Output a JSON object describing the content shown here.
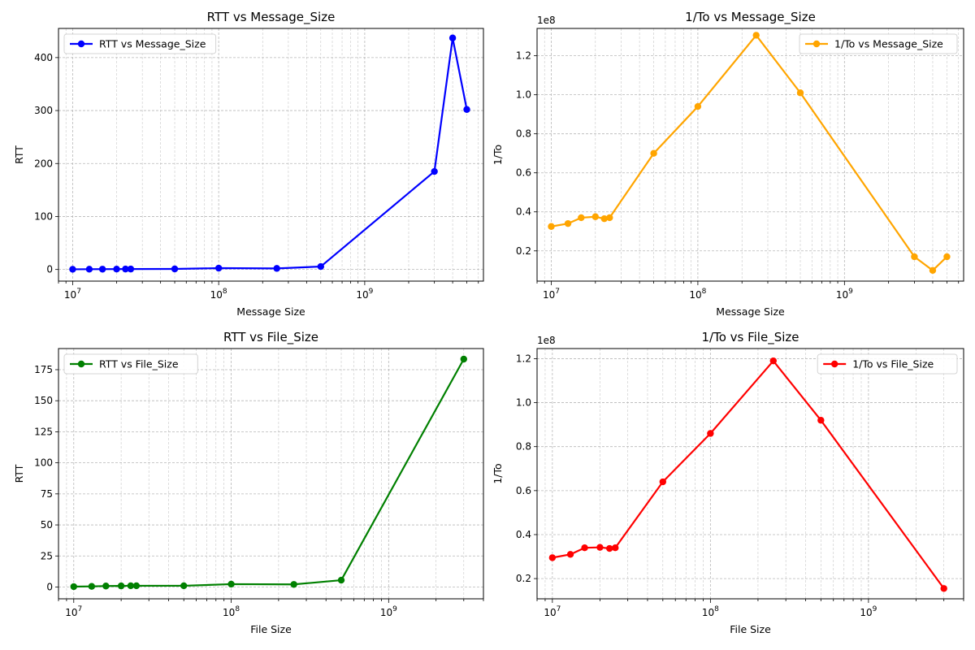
{
  "chart_data": [
    {
      "type": "line",
      "title": "RTT vs Message_Size",
      "xlabel": "Message Size",
      "ylabel": "RTT",
      "xscale": "log",
      "xlim": [
        8000000,
        6500000000
      ],
      "ylim": [
        -22,
        455
      ],
      "y_ticks": [
        0,
        100,
        200,
        300,
        400
      ],
      "y_tick_labels": [
        "0",
        "100",
        "200",
        "300",
        "400"
      ],
      "y_scale_label": "",
      "grid": true,
      "legend_position": "top-left",
      "color": "#0000ff",
      "series": [
        {
          "name": "RTT vs Message_Size",
          "x": [
            10000000,
            13000000,
            16000000,
            20000000,
            23000000,
            25000000,
            50000000,
            100000000,
            250000000,
            500000000,
            3000000000,
            4000000000,
            5000000000
          ],
          "y": [
            0.3,
            0.5,
            0.6,
            0.7,
            0.8,
            0.8,
            1.0,
            2.5,
            2.0,
            5.5,
            185,
            437,
            302
          ]
        }
      ]
    },
    {
      "type": "line",
      "title": "1/To vs Message_Size",
      "xlabel": "Message Size",
      "ylabel": "1/To",
      "xscale": "log",
      "xlim": [
        8000000,
        6500000000
      ],
      "ylim": [
        4500000,
        134000000
      ],
      "y_ticks": [
        20000000,
        40000000,
        60000000,
        80000000,
        100000000,
        120000000
      ],
      "y_tick_labels": [
        "0.2",
        "0.4",
        "0.6",
        "0.8",
        "1.0",
        "1.2"
      ],
      "y_scale_label": "1e8",
      "grid": true,
      "legend_position": "top-right",
      "color": "#ffa500",
      "series": [
        {
          "name": "1/To vs Message_Size",
          "x": [
            10000000,
            13000000,
            16000000,
            20000000,
            23000000,
            25000000,
            50000000,
            100000000,
            250000000,
            500000000,
            3000000000,
            4000000000,
            5000000000
          ],
          "y": [
            32500000,
            34000000,
            37000000,
            37500000,
            36500000,
            37000000,
            70000000,
            94000000,
            130500000,
            101000000,
            17000000,
            10000000,
            17000000
          ]
        }
      ]
    },
    {
      "type": "line",
      "title": "RTT vs File_Size",
      "xlabel": "File Size",
      "ylabel": "RTT",
      "xscale": "log",
      "xlim": [
        8000000,
        4000000000
      ],
      "ylim": [
        -9.5,
        192
      ],
      "y_ticks": [
        0,
        25,
        50,
        75,
        100,
        125,
        150,
        175
      ],
      "y_tick_labels": [
        "0",
        "25",
        "50",
        "75",
        "100",
        "125",
        "150",
        "175"
      ],
      "y_scale_label": "",
      "grid": true,
      "legend_position": "top-left",
      "color": "#008000",
      "series": [
        {
          "name": "RTT vs File_Size",
          "x": [
            10000000,
            13000000,
            16000000,
            20000000,
            23000000,
            25000000,
            50000000,
            100000000,
            250000000,
            500000000,
            3000000000
          ],
          "y": [
            0.3,
            0.5,
            0.8,
            0.9,
            1.0,
            1.0,
            1.0,
            2.3,
            2.1,
            5.5,
            183.5
          ]
        }
      ]
    },
    {
      "type": "line",
      "title": "1/To vs File_Size",
      "xlabel": "File Size",
      "ylabel": "1/To",
      "xscale": "log",
      "xlim": [
        8000000,
        4000000000
      ],
      "ylim": [
        10800000,
        124600000
      ],
      "y_ticks": [
        20000000,
        40000000,
        60000000,
        80000000,
        100000000,
        120000000
      ],
      "y_tick_labels": [
        "0.2",
        "0.4",
        "0.6",
        "0.8",
        "1.0",
        "1.2"
      ],
      "y_scale_label": "1e8",
      "grid": true,
      "legend_position": "top-right",
      "color": "#ff0000",
      "series": [
        {
          "name": "1/To vs File_Size",
          "x": [
            10000000,
            13000000,
            16000000,
            20000000,
            23000000,
            25000000,
            50000000,
            100000000,
            250000000,
            500000000,
            3000000000
          ],
          "y": [
            29500000,
            31000000,
            34000000,
            34200000,
            33700000,
            34000000,
            64000000,
            86000000,
            119000000,
            92000000,
            15500000
          ]
        }
      ]
    }
  ]
}
